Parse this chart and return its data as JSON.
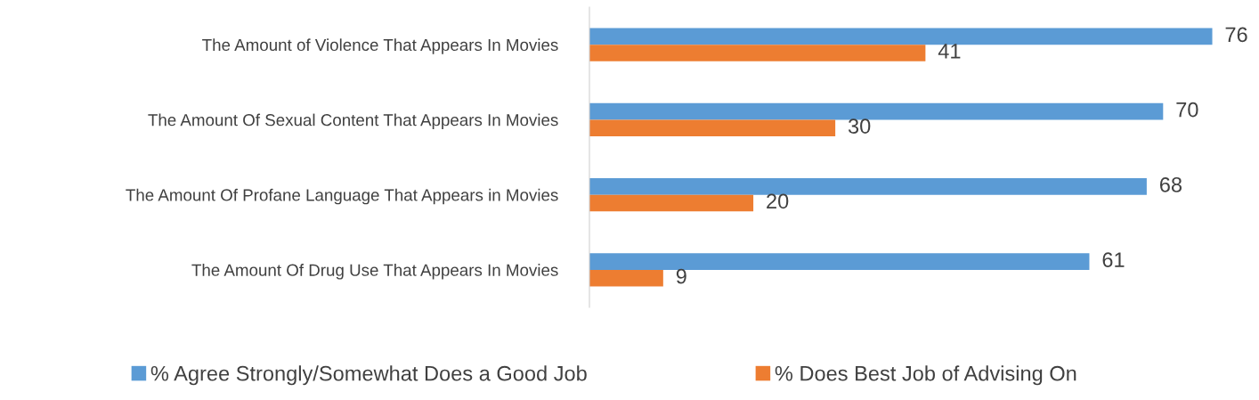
{
  "chart_data": {
    "type": "bar",
    "orientation": "horizontal",
    "categories": [
      "The Amount of Violence That Appears In Movies",
      "The Amount Of Sexual Content That Appears In Movies",
      "The Amount Of Profane Language That Appears in Movies",
      "The Amount Of Drug Use That Appears In Movies"
    ],
    "series": [
      {
        "name": "% Agree Strongly/Somewhat Does a Good Job",
        "color": "#5b9bd5",
        "values": [
          76,
          70,
          68,
          61
        ]
      },
      {
        "name": "% Does Best Job of Advising On",
        "color": "#ed7d31",
        "values": [
          41,
          30,
          20,
          9
        ]
      }
    ],
    "data_labels": true,
    "grid": false,
    "legend": "bottom"
  }
}
